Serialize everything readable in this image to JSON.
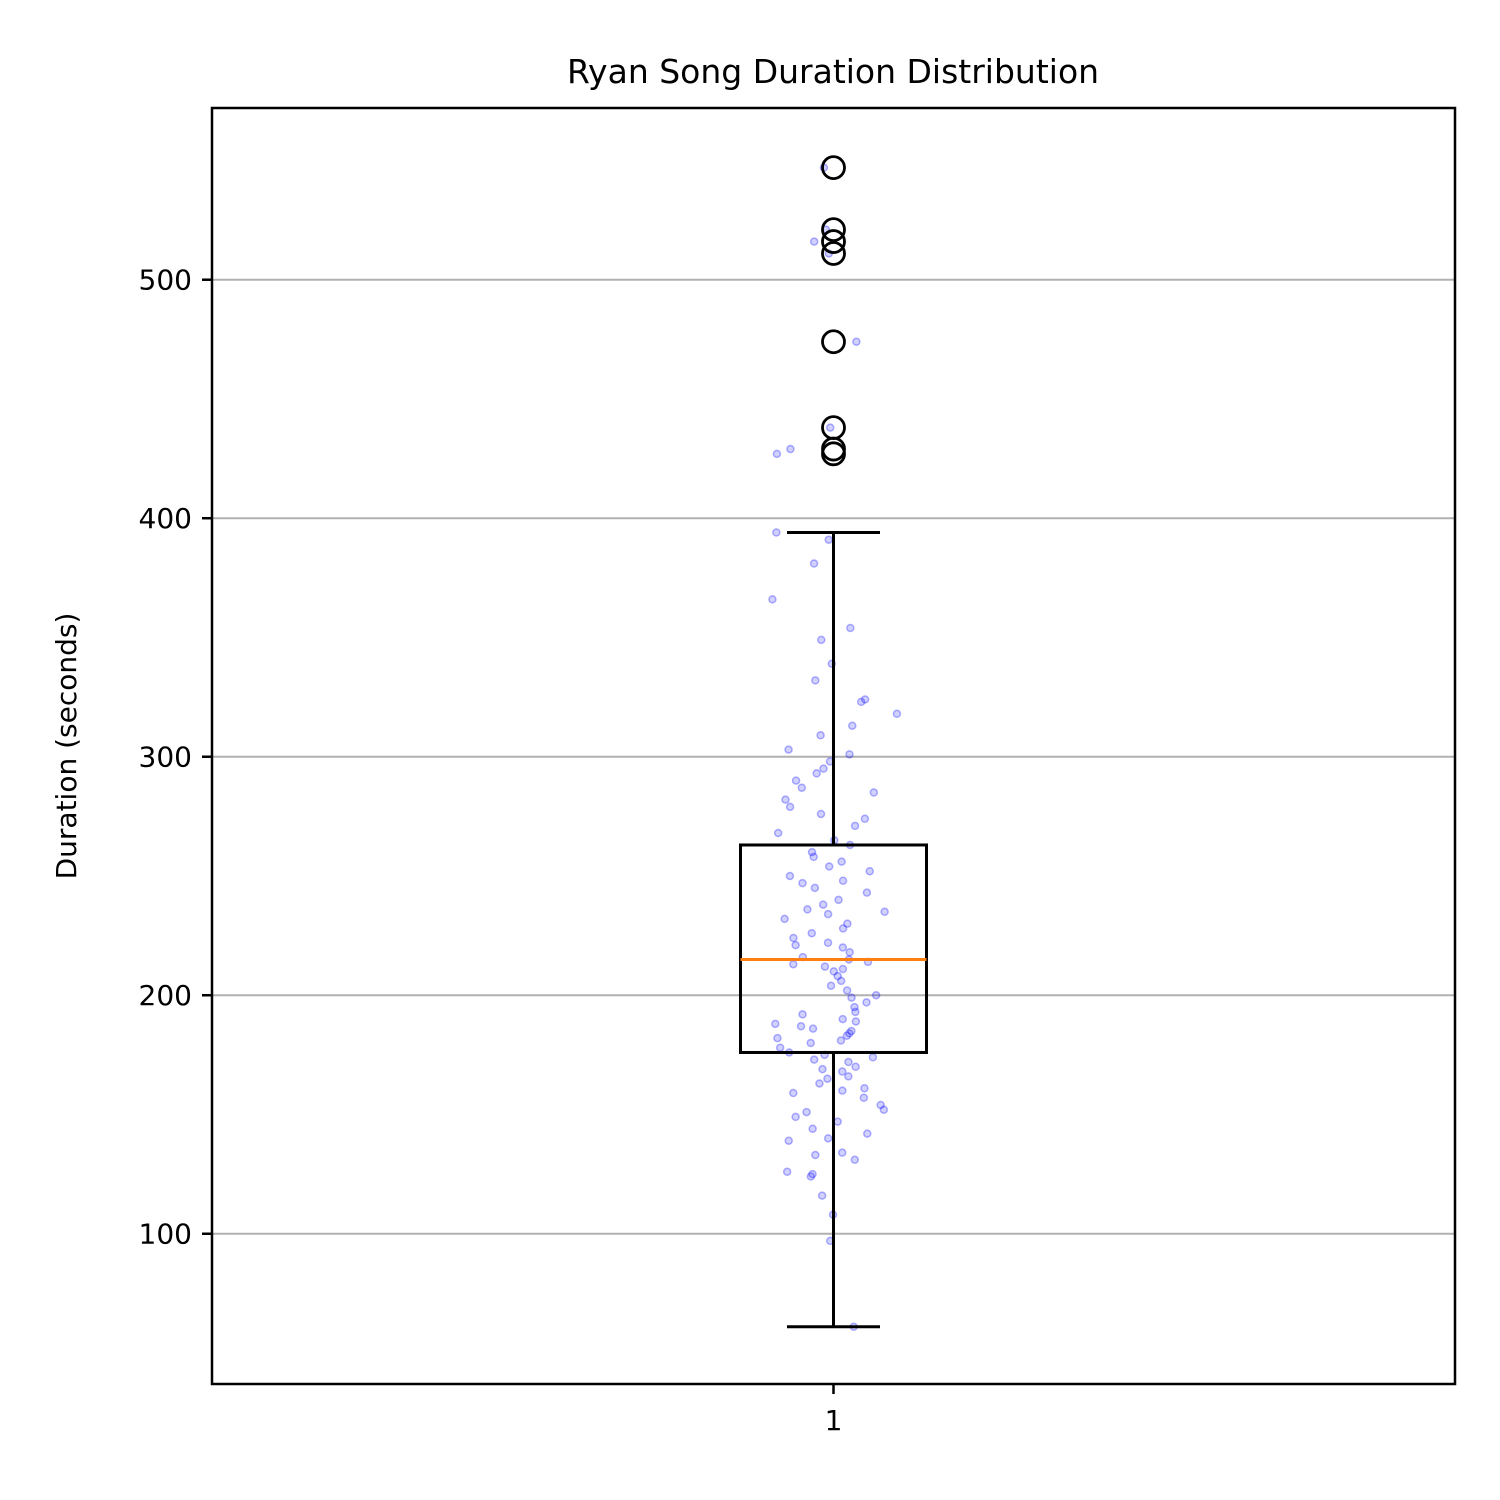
{
  "chart_data": {
    "type": "box",
    "title": "Ryan Song Duration Distribution",
    "xlabel": "",
    "ylabel": "Duration (seconds)",
    "categories": [
      "1"
    ],
    "ylim": [
      37,
      572
    ],
    "yticks": [
      100,
      200,
      300,
      400,
      500
    ],
    "grid": "y-axis",
    "box": {
      "whisker_low": 61,
      "q1": 176,
      "median": 215,
      "q3": 263,
      "whisker_high": 394
    },
    "outliers": [
      547,
      521,
      516,
      511,
      474,
      438,
      429,
      427
    ],
    "jitter_points": [
      61,
      97,
      108,
      116,
      124,
      125,
      126,
      131,
      133,
      134,
      139,
      140,
      142,
      144,
      147,
      149,
      151,
      152,
      154,
      157,
      159,
      160,
      161,
      163,
      165,
      166,
      168,
      169,
      170,
      172,
      173,
      174,
      175,
      176,
      178,
      180,
      181,
      182,
      183,
      184,
      185,
      186,
      187,
      188,
      189,
      190,
      192,
      193,
      195,
      197,
      199,
      200,
      202,
      204,
      206,
      208,
      210,
      211,
      212,
      213,
      214,
      215,
      216,
      218,
      220,
      221,
      222,
      224,
      226,
      228,
      230,
      232,
      234,
      235,
      236,
      238,
      240,
      243,
      245,
      247,
      248,
      250,
      252,
      254,
      256,
      258,
      260,
      263,
      265,
      268,
      271,
      274,
      276,
      279,
      282,
      285,
      287,
      290,
      293,
      295,
      298,
      301,
      303,
      309,
      313,
      318,
      323,
      324,
      332,
      339,
      349,
      354,
      366,
      381,
      391,
      394,
      427,
      429,
      438,
      474,
      511,
      516,
      521,
      547
    ],
    "colors": {
      "box": "#000000",
      "median": "#ff7f0e",
      "points": "#0000ff",
      "grid": "#b0b0b0"
    }
  }
}
